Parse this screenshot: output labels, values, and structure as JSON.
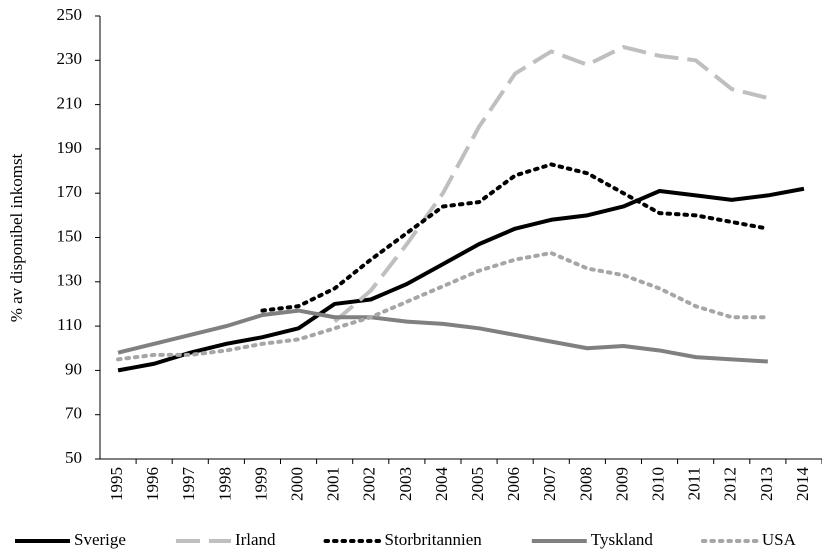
{
  "chart_data": {
    "type": "line",
    "y_label": "% av disponibel inkomst",
    "categories": [
      "1995",
      "1996",
      "1997",
      "1998",
      "1999",
      "2000",
      "2001",
      "2002",
      "2003",
      "2004",
      "2005",
      "2006",
      "2007",
      "2008",
      "2009",
      "2010",
      "2011",
      "2012",
      "2013",
      "2014"
    ],
    "ylim": [
      50,
      250
    ],
    "yticks": [
      50,
      70,
      90,
      110,
      130,
      150,
      170,
      190,
      210,
      230,
      250
    ],
    "legend": "bottom",
    "series": [
      {
        "name": "Sverige",
        "color": "#000000",
        "dash": "solid",
        "values": [
          90,
          93,
          98,
          102,
          105,
          109,
          120,
          122,
          129,
          138,
          147,
          154,
          158,
          160,
          164,
          171,
          169,
          167,
          169,
          172
        ]
      },
      {
        "name": "Irland",
        "color": "#bfbfbf",
        "dash": "dashed",
        "values": [
          null,
          null,
          null,
          null,
          null,
          null,
          112,
          126,
          147,
          170,
          200,
          224,
          234,
          228,
          236,
          232,
          230,
          217,
          213,
          null
        ]
      },
      {
        "name": "Storbritannien",
        "color": "#000000",
        "dash": "dotted",
        "values": [
          null,
          null,
          null,
          null,
          117,
          119,
          127,
          140,
          152,
          164,
          166,
          178,
          183,
          179,
          170,
          161,
          160,
          157,
          154,
          null
        ]
      },
      {
        "name": "Tyskland",
        "color": "#808080",
        "dash": "solid",
        "values": [
          98,
          102,
          106,
          110,
          115,
          117,
          114,
          114,
          112,
          111,
          109,
          106,
          103,
          100,
          101,
          99,
          96,
          95,
          94,
          null
        ]
      },
      {
        "name": "USA",
        "color": "#a6a6a6",
        "dash": "dotted",
        "values": [
          95,
          97,
          97,
          99,
          102,
          104,
          109,
          114,
          121,
          128,
          135,
          140,
          143,
          136,
          133,
          127,
          119,
          114,
          114,
          null
        ]
      }
    ]
  }
}
